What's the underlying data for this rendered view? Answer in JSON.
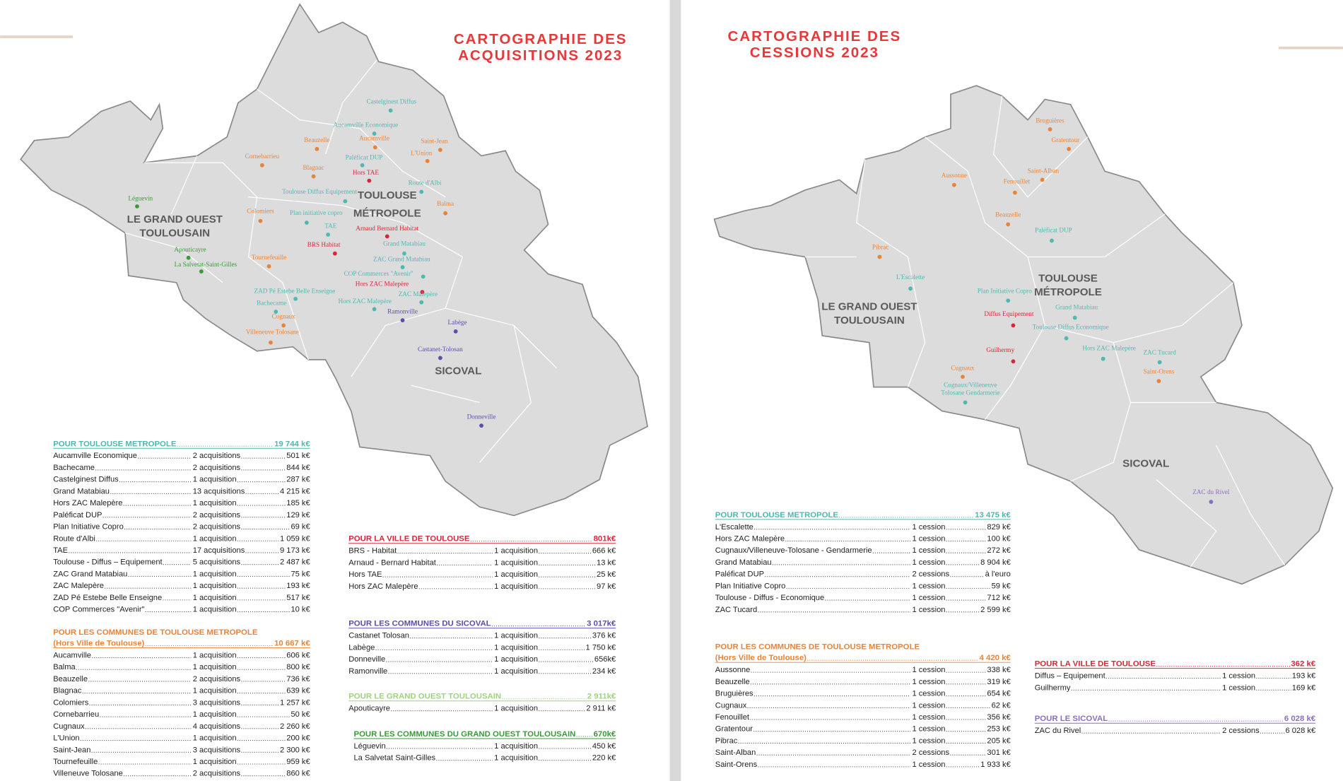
{
  "acquisitions": {
    "title": [
      "CARTOGRAPHIE DES",
      "ACQUISITIONS 2023"
    ],
    "regions": [
      [
        "LE GRAND OUEST",
        "TOULOUSAIN"
      ],
      [
        "TOULOUSE",
        "MÉTROPOLE"
      ],
      [
        "SICOVAL"
      ]
    ],
    "places": [
      {
        "label": "Castelginest Diffus",
        "color": "#4fb8b0"
      },
      {
        "label": "Aucamville Economique",
        "color": "#4fb8b0"
      },
      {
        "label": "Beauzelle",
        "color": "#e8843a"
      },
      {
        "label": "Aucamville",
        "color": "#e8843a"
      },
      {
        "label": "Saint-Jean",
        "color": "#e8843a"
      },
      {
        "label": "Cornebarrieu",
        "color": "#e8843a"
      },
      {
        "label": "Paléficat DUP",
        "color": "#4fb8b0"
      },
      {
        "label": "L'Union",
        "color": "#e8843a"
      },
      {
        "label": "Blagnac",
        "color": "#e8843a"
      },
      {
        "label": "Hors TAE",
        "color": "#d6283a"
      },
      {
        "label": "Route d'Albi",
        "color": "#4fb8b0"
      },
      {
        "label": "Léguevin",
        "color": "#3a9a3a"
      },
      {
        "label": "Toulouse Diffus Equipement",
        "color": "#4fb8b0"
      },
      {
        "label": "Balma",
        "color": "#e8843a"
      },
      {
        "label": "Colomiers",
        "color": "#e8843a"
      },
      {
        "label": "Plan initiative copro",
        "color": "#4fb8b0"
      },
      {
        "label": "TAE",
        "color": "#4fb8b0"
      },
      {
        "label": "Arnaud Bernard Habitat",
        "color": "#d6283a"
      },
      {
        "label": "BRS Habitat",
        "color": "#d6283a"
      },
      {
        "label": "Grand Matabiau",
        "color": "#4fb8b0"
      },
      {
        "label": "Apouticayre",
        "color": "#3a9a3a"
      },
      {
        "label": "Tournefeuille",
        "color": "#e8843a"
      },
      {
        "label": "ZAC Grand Matabiau",
        "color": "#4fb8b0"
      },
      {
        "label": "La Salvetat-Saint-Gilles",
        "color": "#3a9a3a"
      },
      {
        "label": "COP Commerces \"Avenir\"",
        "color": "#4fb8b0"
      },
      {
        "label": "Hors ZAC Malepère",
        "color": "#d6283a"
      },
      {
        "label": "ZAD Pé Estebe Belle Enseigne",
        "color": "#4fb8b0"
      },
      {
        "label": "ZAC Malepère",
        "color": "#4fb8b0"
      },
      {
        "label": "Bachecame",
        "color": "#4fb8b0"
      },
      {
        "label": "Hors ZAC Malepère",
        "color": "#4fb8b0"
      },
      {
        "label": "Ramonville",
        "color": "#5b4fa8"
      },
      {
        "label": "Cugnaux",
        "color": "#e8843a"
      },
      {
        "label": "Labège",
        "color": "#5b4fa8"
      },
      {
        "label": "Villeneuve Tolosane",
        "color": "#e8843a"
      },
      {
        "label": "Castanet-Tolosan",
        "color": "#5b4fa8"
      },
      {
        "label": "Donneville",
        "color": "#5b4fa8"
      }
    ],
    "tables": [
      {
        "heading": [
          "POUR TOULOUSE METROPOLE"
        ],
        "total": "19 744 k€",
        "color": "#4fb8b0",
        "rows": [
          [
            "Aucamville Economique",
            "2 acquisitions",
            "501 k€"
          ],
          [
            "Bachecame",
            "2 acquisitions",
            "844 k€"
          ],
          [
            "Castelginest Diffus",
            "1 acquisition",
            "287 k€"
          ],
          [
            "Grand Matabiau",
            "13 acquisitions",
            "4 215 k€"
          ],
          [
            "Hors ZAC Malepère",
            "1 acquisition",
            "185 k€"
          ],
          [
            "Paléficat DUP",
            "2 acquisitions",
            "129 k€"
          ],
          [
            "Plan Initiative Copro",
            "2 acquisitions",
            "69 k€"
          ],
          [
            "Route d'Albi",
            "1 acquisition",
            "1 059 k€"
          ],
          [
            "TAE",
            "17 acquisitions",
            "9 173 k€"
          ],
          [
            "Toulouse - Diffus – Equipement",
            "5 acquisitions",
            "2 487 k€"
          ],
          [
            "ZAC Grand Matabiau",
            "1 acquisition",
            "75 k€"
          ],
          [
            "ZAC Malepère",
            "1 acquisition",
            "193 k€"
          ],
          [
            "ZAD Pé Estebe Belle Enseigne",
            "1 acquisition",
            "517 k€"
          ],
          [
            "COP Commerces \"Avenir\"",
            "1 acquisition",
            "10 k€"
          ]
        ]
      },
      {
        "heading": [
          "POUR LES COMMUNES DE TOULOUSE METROPOLE",
          "(Hors Ville de Toulouse)"
        ],
        "total": "10 667 k€",
        "color": "#e8843a",
        "rows": [
          [
            "Aucamville",
            "1 acquisition",
            "606 k€"
          ],
          [
            "Balma",
            "1 acquisition",
            "800 k€"
          ],
          [
            "Beauzelle",
            "2 acquisitions",
            "736 k€"
          ],
          [
            "Blagnac",
            "1 acquisition",
            "639 k€"
          ],
          [
            "Colomiers",
            "3 acquisitions",
            "1 257 k€"
          ],
          [
            "Cornebarrieu",
            "1 acquisition",
            "50 k€"
          ],
          [
            "Cugnaux",
            "4 acquisitions",
            "2 260 k€"
          ],
          [
            "L'Union",
            "1 acquisition",
            "200 k€"
          ],
          [
            "Saint-Jean",
            "3 acquisitions",
            "2 300 k€"
          ],
          [
            "Tournefeuille",
            "1 acquisition",
            "959 k€"
          ],
          [
            "Villeneuve Tolosane",
            "2 acquisitions",
            "860 k€"
          ]
        ]
      },
      {
        "heading": [
          "POUR LA VILLE DE TOULOUSE"
        ],
        "total": "801k€",
        "color": "#d6283a",
        "rows": [
          [
            "BRS - Habitat",
            "1 acquisition",
            "666 k€"
          ],
          [
            "Arnaud - Bernard Habitat",
            "1 acquisition",
            "13 k€"
          ],
          [
            "Hors TAE",
            "1 acquisition",
            "25 k€"
          ],
          [
            "Hors ZAC Malepère",
            "1 acquisition",
            "97 k€"
          ]
        ]
      },
      {
        "heading": [
          "POUR LES COMMUNES DU SICOVAL"
        ],
        "total": "3 017k€",
        "color": "#5b4fa8",
        "rows": [
          [
            "Castanet Tolosan",
            "1 acquisition",
            "376 k€"
          ],
          [
            "Labège",
            "1 acquisition",
            "1 750 k€"
          ],
          [
            "Donneville",
            "1 acquisition",
            "656k€"
          ],
          [
            "Ramonville",
            "1 acquisition",
            "234 k€"
          ]
        ]
      },
      {
        "heading": [
          "POUR LE GRAND OUEST TOULOUSAIN"
        ],
        "total": "2 911k€",
        "color": "#9fd37c",
        "rows": [
          [
            "Apouticayre",
            "1 acquisition",
            "2 911 k€"
          ]
        ]
      },
      {
        "heading": [
          "POUR LES COMMUNES DU GRAND OUEST TOULOUSAIN"
        ],
        "total": "670k€",
        "color": "#3a9a3a",
        "rows": [
          [
            "Léguevin",
            "1 acquisition",
            "450 k€"
          ],
          [
            "La Salvetat Saint-Gilles",
            "1 acquisition",
            "220 k€"
          ]
        ]
      }
    ]
  },
  "cessions": {
    "title": [
      "CARTOGRAPHIE DES",
      "CESSIONS 2023"
    ],
    "regions": [
      [
        "LE GRAND OUEST",
        "TOULOUSAIN"
      ],
      [
        "TOULOUSE",
        "MÉTROPOLE"
      ],
      [
        "SICOVAL"
      ]
    ],
    "places": [
      {
        "label": "Bruguières",
        "color": "#e8843a"
      },
      {
        "label": "Gratentour",
        "color": "#e8843a"
      },
      {
        "label": "Aussonne",
        "color": "#e8843a"
      },
      {
        "label": "Saint-Alban",
        "color": "#e8843a"
      },
      {
        "label": "Fenouillet",
        "color": "#e8843a"
      },
      {
        "label": "Beauzelle",
        "color": "#e8843a"
      },
      {
        "label": "Paléficat DUP",
        "color": "#4fb8b0"
      },
      {
        "label": "Pibrac",
        "color": "#e8843a"
      },
      {
        "label": "L'Escalette",
        "color": "#4fb8b0"
      },
      {
        "label": "Plan Initiative Copro",
        "color": "#4fb8b0"
      },
      {
        "label": "Grand Matabiau",
        "color": "#4fb8b0"
      },
      {
        "label": "Diffus Equipement",
        "color": "#d6283a"
      },
      {
        "label": "Toulouse Diffus Economique",
        "color": "#4fb8b0"
      },
      {
        "label": "Hors ZAC Malepère",
        "color": "#4fb8b0"
      },
      {
        "label": "ZAC Tucard",
        "color": "#4fb8b0"
      },
      {
        "label": "Guilhermy",
        "color": "#d6283a"
      },
      {
        "label": "Cugnaux",
        "color": "#e8843a"
      },
      {
        "label": "Saint-Orens",
        "color": "#e8843a"
      },
      {
        "label": [
          "Cugnaux/Villeneuve",
          "Tolosane Gendarmerie"
        ],
        "color": "#4fb8b0"
      },
      {
        "label": "ZAC du Rivel",
        "color": "#8a6fc0"
      }
    ],
    "tables": [
      {
        "heading": [
          "POUR TOULOUSE METROPOLE"
        ],
        "total": "13 475 k€",
        "color": "#4fb8b0",
        "rows": [
          [
            "L'Escalette",
            "1 cession",
            "829 k€"
          ],
          [
            "Hors ZAC Malepère",
            "1 cession",
            "100 k€"
          ],
          [
            "Cugnaux/Villeneuve-Tolosane - Gendarmerie",
            "1 cession",
            "272 k€"
          ],
          [
            "Grand Matabiau",
            "1 cession",
            "8 904 k€"
          ],
          [
            "Paléficat DUP",
            "2 cessions",
            "à l'euro"
          ],
          [
            "Plan Initiative Copro",
            "1 cession",
            "59 k€"
          ],
          [
            "Toulouse - Diffus - Economique",
            "1 cession",
            "712 k€"
          ],
          [
            "ZAC Tucard",
            "1 cession",
            "2 599 k€"
          ]
        ]
      },
      {
        "heading": [
          "POUR LES COMMUNES DE TOULOUSE METROPOLE",
          "(Hors Ville de Toulouse)"
        ],
        "total": "4 420 k€",
        "color": "#e8843a",
        "rows": [
          [
            "Aussonne",
            "1 cession",
            "338 k€"
          ],
          [
            "Beauzelle",
            "1 cession",
            "319 k€"
          ],
          [
            "Bruguières",
            "1 cession",
            "654 k€"
          ],
          [
            "Cugnaux",
            "1 cession",
            "62 k€"
          ],
          [
            "Fenouillet",
            "1 cession",
            "356 k€"
          ],
          [
            "Gratentour",
            "1 cession",
            "253 k€"
          ],
          [
            "Pibrac",
            "1 cession",
            "205 k€"
          ],
          [
            "Saint-Alban",
            "2 cessions",
            "301 k€"
          ],
          [
            "Saint-Orens",
            "1 cession",
            "1 933 k€"
          ]
        ]
      },
      {
        "heading": [
          "POUR LA VILLE DE TOULOUSE"
        ],
        "total": "362 k€",
        "color": "#d6283a",
        "rows": [
          [
            "Diffus – Equipement",
            "1 cession",
            "193 k€"
          ],
          [
            "Guilhermy",
            "1 cession",
            "169 k€"
          ]
        ]
      },
      {
        "heading": [
          "POUR LE SICOVAL"
        ],
        "total": "6 028 k€",
        "color": "#8a6fc0",
        "rows": [
          [
            "ZAC du Rivel",
            "2 cessions",
            "6 028 k€"
          ]
        ]
      }
    ]
  }
}
